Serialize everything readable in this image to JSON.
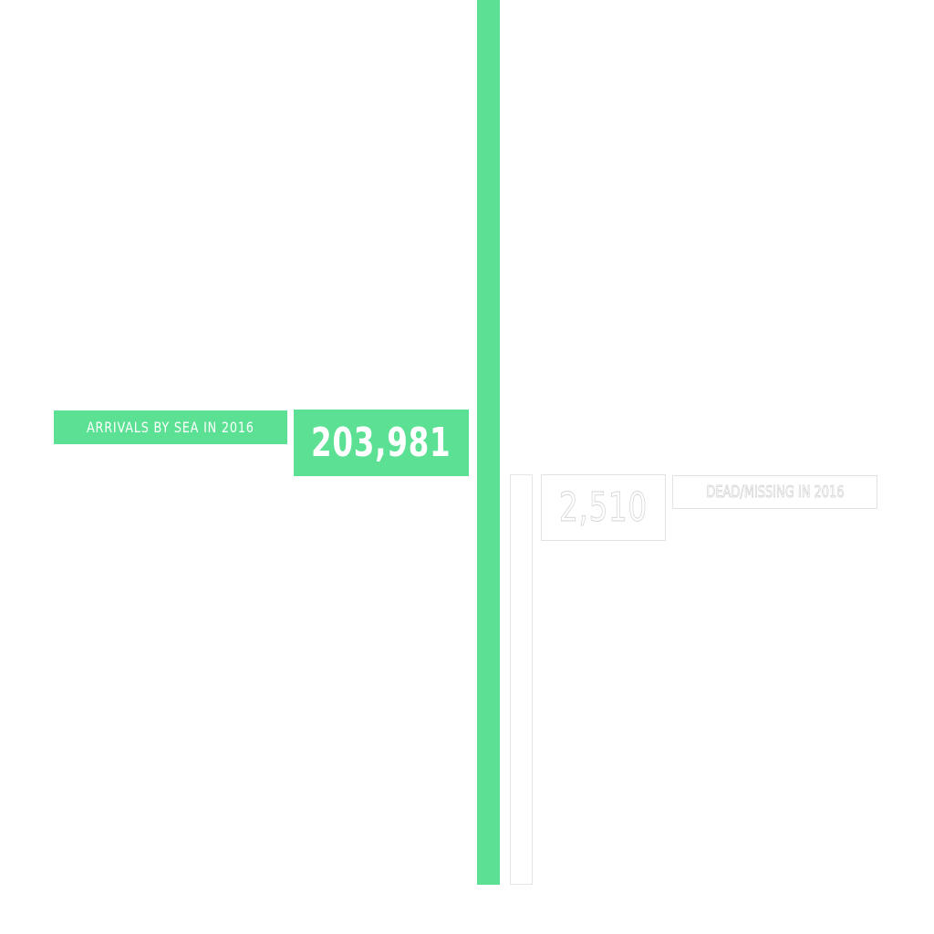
{
  "colors": {
    "arrivals": "#5ce194",
    "dead_missing_outline": "#e2e2e2",
    "background": "#ffffff"
  },
  "chart_data": {
    "type": "bar",
    "orientation": "vertical",
    "categories": [
      "ARRIVALS BY SEA IN 2016",
      "DEAD/MISSING IN 2016"
    ],
    "values": [
      203981,
      2510
    ],
    "value_labels": [
      "203,981",
      "2,510"
    ],
    "title": "",
    "xlabel": "",
    "ylabel": "",
    "grid": false,
    "legend": "none"
  }
}
